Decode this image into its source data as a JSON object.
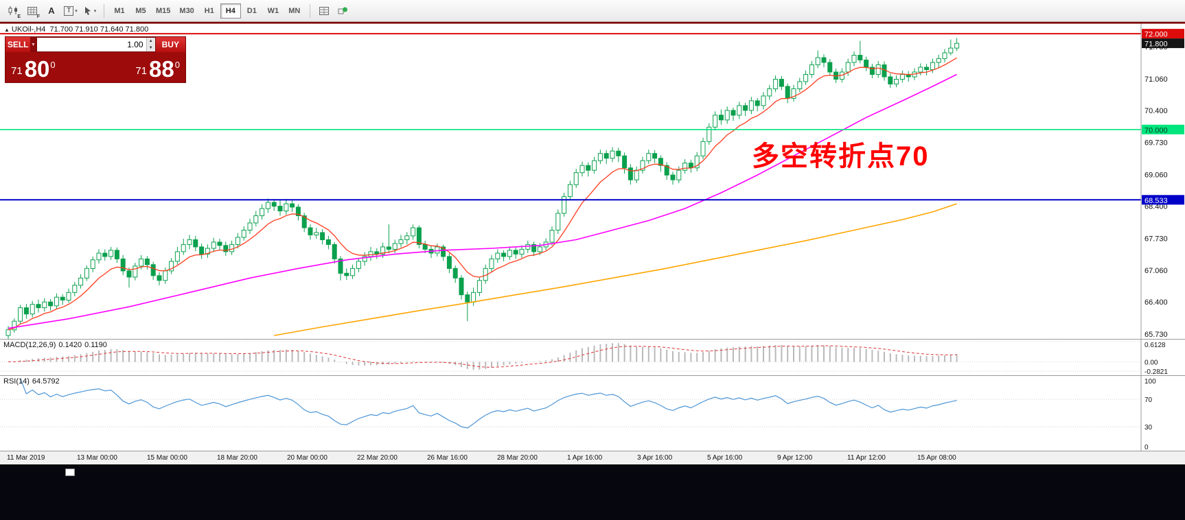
{
  "toolbar": {
    "icons_left": [
      {
        "name": "candle-chart-icon",
        "text": "E"
      },
      {
        "name": "grid-chart-icon",
        "text": "F"
      },
      {
        "name": "text-annotation-icon",
        "text": "A"
      },
      {
        "name": "textbox-tool-icon",
        "text": "T"
      },
      {
        "name": "crosshair-tool-icon",
        "text": ""
      }
    ],
    "timeframes": [
      {
        "label": "M1",
        "active": false
      },
      {
        "label": "M5",
        "active": false
      },
      {
        "label": "M15",
        "active": false
      },
      {
        "label": "M30",
        "active": false
      },
      {
        "label": "H1",
        "active": false
      },
      {
        "label": "H4",
        "active": true
      },
      {
        "label": "D1",
        "active": false
      },
      {
        "label": "W1",
        "active": false
      },
      {
        "label": "MN",
        "active": false
      }
    ],
    "icons_right": [
      {
        "name": "indicators-icon"
      },
      {
        "name": "objects-icon"
      }
    ]
  },
  "chart": {
    "title_symbol": "UKOil-,H4",
    "title_ohlc": "71.700 71.910 71.640 71.800",
    "annotation": "多空转折点70"
  },
  "trade_widget": {
    "sell_label": "SELL",
    "buy_label": "BUY",
    "volume": "1.00",
    "sell_price": {
      "small": "71",
      "big": "80",
      "sup": "0"
    },
    "buy_price": {
      "small": "71",
      "big": "88",
      "sup": "0"
    }
  },
  "macd": {
    "name": "MACD(12,26,9)",
    "value_main": "0.1420",
    "value_signal": "0.1190",
    "scale": {
      "max": 0.6128,
      "min": -0.2821,
      "max_label": "0.6128",
      "zero_label": "0.00",
      "min_label": "-0.2821"
    }
  },
  "rsi": {
    "name": "RSI(14)",
    "value": "64.5792",
    "period": 14,
    "levels": [
      100,
      70,
      30,
      0
    ],
    "dotted_levels": [
      70,
      30
    ]
  },
  "chart_data": {
    "type": "candlestick",
    "symbol": "UKOil-",
    "timeframe": "H4",
    "ohlc_current": {
      "open": 71.7,
      "high": 71.91,
      "low": 71.64,
      "close": 71.8
    },
    "ylim": [
      65.63,
      72.245
    ],
    "scale_labels": [
      71.73,
      71.06,
      70.4,
      69.73,
      69.06,
      68.4,
      67.73,
      67.06,
      66.4,
      65.73
    ],
    "price_lines": [
      {
        "price": 72.0,
        "label": "72.000",
        "color": "#dd0c0c",
        "text": "#ffffff",
        "width": 2
      },
      {
        "price": 70.0,
        "label": "70.000",
        "color": "#00e57d",
        "text": "#07361d",
        "width": 1.6
      },
      {
        "price": 68.533,
        "label": "68.533",
        "color": "#0000c8",
        "text": "#ffffff",
        "width": 2
      }
    ],
    "bid": {
      "price": 71.8,
      "label": "71.800",
      "color": "#151515",
      "text": "#ffffff"
    },
    "colors": {
      "candle": "#0aa04d",
      "up_fill": "#ffffff",
      "ma_fast": "#ff3c1e",
      "ma_medium": "#ff00ff",
      "ma_slow": "#ffa500",
      "macd_bar": "#b9b9b9",
      "macd_signal": "#e03131",
      "rsi_line": "#4b95d6"
    },
    "time_labels": [
      "11 Mar 2019",
      "13 Mar 00:00",
      "15 Mar 00:00",
      "18 Mar 20:00",
      "20 Mar 00:00",
      "22 Mar 20:00",
      "26 Mar 16:00",
      "28 Mar 20:00",
      "1 Apr 16:00",
      "3 Apr 16:00",
      "5 Apr 16:00",
      "9 Apr 12:00",
      "11 Apr 12:00",
      "15 Apr 08:00"
    ],
    "ma_medium_points": [
      [
        0,
        65.85
      ],
      [
        10,
        66.05
      ],
      [
        20,
        66.3
      ],
      [
        30,
        66.6
      ],
      [
        40,
        66.9
      ],
      [
        48,
        67.1
      ],
      [
        56,
        67.28
      ],
      [
        64,
        67.4
      ],
      [
        72,
        67.48
      ],
      [
        80,
        67.52
      ],
      [
        88,
        67.58
      ],
      [
        94,
        67.7
      ],
      [
        100,
        67.9
      ],
      [
        106,
        68.1
      ],
      [
        112,
        68.35
      ],
      [
        118,
        68.68
      ],
      [
        124,
        69.05
      ],
      [
        130,
        69.45
      ],
      [
        136,
        69.85
      ],
      [
        142,
        70.25
      ],
      [
        148,
        70.6
      ],
      [
        153,
        70.9
      ],
      [
        157,
        71.15
      ]
    ],
    "ma_slow_points": [
      [
        44,
        65.7
      ],
      [
        52,
        65.88
      ],
      [
        60,
        66.05
      ],
      [
        68,
        66.22
      ],
      [
        76,
        66.38
      ],
      [
        84,
        66.55
      ],
      [
        92,
        66.72
      ],
      [
        100,
        66.9
      ],
      [
        108,
        67.08
      ],
      [
        116,
        67.28
      ],
      [
        124,
        67.48
      ],
      [
        132,
        67.68
      ],
      [
        140,
        67.9
      ],
      [
        148,
        68.12
      ],
      [
        153,
        68.28
      ],
      [
        157,
        68.45
      ]
    ],
    "candles": [
      [
        65.7,
        65.9,
        65.62,
        65.82
      ],
      [
        65.82,
        66.06,
        65.76,
        66.0
      ],
      [
        66.0,
        66.34,
        65.94,
        66.28
      ],
      [
        66.28,
        66.36,
        66.05,
        66.15
      ],
      [
        66.15,
        66.42,
        66.08,
        66.35
      ],
      [
        66.35,
        66.45,
        66.18,
        66.28
      ],
      [
        66.28,
        66.48,
        66.2,
        66.4
      ],
      [
        66.4,
        66.46,
        66.22,
        66.32
      ],
      [
        66.32,
        66.58,
        66.26,
        66.5
      ],
      [
        66.5,
        66.56,
        66.34,
        66.44
      ],
      [
        66.44,
        66.68,
        66.38,
        66.6
      ],
      [
        66.6,
        66.82,
        66.52,
        66.75
      ],
      [
        66.75,
        66.98,
        66.68,
        66.9
      ],
      [
        66.9,
        67.16,
        66.84,
        67.1
      ],
      [
        67.1,
        67.35,
        67.02,
        67.28
      ],
      [
        67.28,
        67.5,
        67.2,
        67.42
      ],
      [
        67.42,
        67.5,
        67.26,
        67.35
      ],
      [
        67.35,
        67.55,
        67.28,
        67.48
      ],
      [
        67.48,
        67.54,
        67.22,
        67.3
      ],
      [
        67.3,
        67.38,
        66.96,
        67.05
      ],
      [
        67.05,
        67.12,
        66.7,
        66.92
      ],
      [
        66.92,
        67.22,
        66.85,
        67.15
      ],
      [
        67.15,
        67.38,
        67.08,
        67.3
      ],
      [
        67.3,
        67.36,
        67.08,
        67.18
      ],
      [
        67.18,
        67.24,
        66.86,
        66.95
      ],
      [
        66.95,
        67.02,
        66.75,
        66.85
      ],
      [
        66.85,
        67.12,
        66.78,
        67.05
      ],
      [
        67.05,
        67.32,
        66.98,
        67.25
      ],
      [
        67.25,
        67.55,
        67.18,
        67.45
      ],
      [
        67.45,
        67.72,
        67.38,
        67.6
      ],
      [
        67.6,
        67.8,
        67.5,
        67.7
      ],
      [
        67.7,
        67.78,
        67.46,
        67.55
      ],
      [
        67.55,
        67.62,
        67.3,
        67.4
      ],
      [
        67.4,
        67.6,
        67.32,
        67.52
      ],
      [
        67.52,
        67.74,
        67.44,
        67.65
      ],
      [
        67.65,
        67.72,
        67.48,
        67.58
      ],
      [
        67.58,
        67.66,
        67.36,
        67.45
      ],
      [
        67.45,
        67.68,
        67.38,
        67.6
      ],
      [
        67.6,
        67.84,
        67.52,
        67.75
      ],
      [
        67.75,
        67.98,
        67.68,
        67.9
      ],
      [
        67.9,
        68.14,
        67.82,
        68.05
      ],
      [
        68.05,
        68.3,
        67.98,
        68.2
      ],
      [
        68.2,
        68.44,
        68.12,
        68.35
      ],
      [
        68.35,
        68.56,
        68.26,
        68.48
      ],
      [
        68.48,
        68.55,
        68.3,
        68.4
      ],
      [
        68.4,
        68.52,
        68.2,
        68.3
      ],
      [
        68.3,
        68.55,
        68.22,
        68.45
      ],
      [
        68.45,
        68.52,
        68.28,
        68.38
      ],
      [
        68.38,
        68.44,
        68.1,
        68.2
      ],
      [
        68.2,
        68.26,
        67.86,
        67.95
      ],
      [
        67.95,
        68.02,
        67.7,
        67.8
      ],
      [
        67.8,
        67.95,
        67.72,
        67.85
      ],
      [
        67.85,
        67.92,
        67.6,
        67.7
      ],
      [
        67.7,
        67.78,
        67.5,
        67.6
      ],
      [
        67.6,
        67.65,
        67.2,
        67.3
      ],
      [
        67.3,
        67.36,
        66.85,
        67.0
      ],
      [
        67.0,
        67.1,
        66.86,
        66.95
      ],
      [
        66.95,
        67.18,
        66.88,
        67.1
      ],
      [
        67.1,
        67.32,
        67.02,
        67.25
      ],
      [
        67.25,
        67.44,
        67.16,
        67.35
      ],
      [
        67.35,
        67.55,
        67.26,
        67.45
      ],
      [
        67.45,
        67.52,
        67.3,
        67.4
      ],
      [
        67.4,
        67.64,
        67.32,
        67.55
      ],
      [
        67.55,
        68.02,
        67.42,
        67.5
      ],
      [
        67.5,
        67.7,
        67.42,
        67.62
      ],
      [
        67.62,
        67.8,
        67.54,
        67.7
      ],
      [
        67.7,
        67.86,
        67.6,
        67.78
      ],
      [
        67.78,
        68.02,
        67.7,
        67.95
      ],
      [
        67.95,
        68.0,
        67.52,
        67.6
      ],
      [
        67.6,
        67.68,
        67.42,
        67.5
      ],
      [
        67.5,
        67.58,
        67.32,
        67.42
      ],
      [
        67.42,
        67.62,
        67.35,
        67.55
      ],
      [
        67.55,
        67.6,
        67.26,
        67.35
      ],
      [
        67.35,
        67.42,
        67.0,
        67.1
      ],
      [
        67.1,
        67.16,
        66.8,
        66.9
      ],
      [
        66.9,
        66.96,
        66.45,
        66.55
      ],
      [
        66.55,
        66.62,
        66.0,
        66.4
      ],
      [
        66.4,
        66.7,
        66.32,
        66.6
      ],
      [
        66.6,
        66.92,
        66.52,
        66.85
      ],
      [
        66.85,
        67.18,
        66.78,
        67.1
      ],
      [
        67.1,
        67.38,
        67.02,
        67.3
      ],
      [
        67.3,
        67.5,
        67.22,
        67.42
      ],
      [
        67.42,
        67.48,
        67.25,
        67.35
      ],
      [
        67.35,
        67.56,
        67.28,
        67.48
      ],
      [
        67.48,
        67.54,
        67.3,
        67.4
      ],
      [
        67.4,
        67.58,
        67.32,
        67.5
      ],
      [
        67.5,
        67.68,
        67.42,
        67.6
      ],
      [
        67.6,
        67.66,
        67.36,
        67.45
      ],
      [
        67.45,
        67.63,
        67.38,
        67.55
      ],
      [
        67.55,
        67.73,
        67.48,
        67.65
      ],
      [
        67.65,
        67.98,
        67.58,
        67.9
      ],
      [
        67.9,
        68.33,
        67.82,
        68.25
      ],
      [
        68.25,
        68.68,
        68.18,
        68.6
      ],
      [
        68.6,
        68.93,
        68.52,
        68.85
      ],
      [
        68.85,
        69.18,
        68.78,
        69.1
      ],
      [
        69.1,
        69.33,
        69.02,
        69.25
      ],
      [
        69.25,
        69.32,
        69.02,
        69.15
      ],
      [
        69.15,
        69.43,
        69.08,
        69.35
      ],
      [
        69.35,
        69.58,
        69.28,
        69.5
      ],
      [
        69.5,
        69.57,
        69.28,
        69.4
      ],
      [
        69.4,
        69.63,
        69.32,
        69.55
      ],
      [
        69.55,
        69.62,
        69.32,
        69.45
      ],
      [
        69.45,
        69.52,
        69.08,
        69.2
      ],
      [
        69.2,
        69.28,
        68.85,
        68.95
      ],
      [
        68.95,
        69.23,
        68.88,
        69.15
      ],
      [
        69.15,
        69.43,
        69.08,
        69.35
      ],
      [
        69.35,
        69.58,
        69.28,
        69.5
      ],
      [
        69.5,
        69.57,
        69.3,
        69.4
      ],
      [
        69.4,
        69.46,
        69.12,
        69.25
      ],
      [
        69.25,
        69.32,
        68.95,
        69.05
      ],
      [
        69.05,
        69.12,
        68.85,
        68.95
      ],
      [
        68.95,
        69.23,
        68.88,
        69.15
      ],
      [
        69.15,
        69.38,
        69.08,
        69.3
      ],
      [
        69.3,
        69.37,
        69.1,
        69.2
      ],
      [
        69.2,
        69.53,
        69.13,
        69.45
      ],
      [
        69.45,
        69.83,
        69.38,
        69.75
      ],
      [
        69.75,
        70.13,
        69.68,
        70.05
      ],
      [
        70.05,
        70.38,
        69.98,
        70.3
      ],
      [
        70.3,
        70.42,
        70.1,
        70.2
      ],
      [
        70.2,
        70.48,
        70.12,
        70.4
      ],
      [
        70.4,
        70.46,
        70.18,
        70.3
      ],
      [
        70.3,
        70.58,
        70.22,
        70.5
      ],
      [
        70.5,
        70.56,
        70.28,
        70.4
      ],
      [
        70.4,
        70.68,
        70.32,
        70.6
      ],
      [
        70.6,
        70.66,
        70.38,
        70.5
      ],
      [
        70.5,
        70.78,
        70.42,
        70.7
      ],
      [
        70.7,
        70.93,
        70.62,
        70.85
      ],
      [
        70.85,
        71.13,
        70.78,
        71.05
      ],
      [
        71.05,
        71.12,
        70.82,
        70.9
      ],
      [
        70.9,
        70.96,
        70.55,
        70.65
      ],
      [
        70.65,
        70.93,
        70.58,
        70.85
      ],
      [
        70.85,
        71.08,
        70.78,
        71.0
      ],
      [
        71.0,
        71.23,
        70.93,
        71.15
      ],
      [
        71.15,
        71.43,
        71.08,
        71.35
      ],
      [
        71.35,
        71.65,
        71.28,
        71.5
      ],
      [
        71.5,
        71.57,
        71.3,
        71.4
      ],
      [
        71.4,
        71.47,
        71.12,
        71.2
      ],
      [
        71.2,
        71.27,
        70.97,
        71.05
      ],
      [
        71.05,
        71.28,
        70.98,
        71.2
      ],
      [
        71.2,
        71.48,
        71.12,
        71.4
      ],
      [
        71.4,
        71.63,
        71.32,
        71.55
      ],
      [
        71.55,
        71.85,
        71.38,
        71.45
      ],
      [
        71.45,
        71.52,
        71.22,
        71.3
      ],
      [
        71.3,
        71.37,
        71.07,
        71.15
      ],
      [
        71.15,
        71.43,
        71.08,
        71.35
      ],
      [
        71.35,
        71.42,
        71.02,
        71.1
      ],
      [
        71.1,
        71.17,
        70.87,
        70.95
      ],
      [
        70.95,
        71.13,
        70.88,
        71.05
      ],
      [
        71.05,
        71.23,
        70.98,
        71.15
      ],
      [
        71.15,
        71.22,
        71.0,
        71.1
      ],
      [
        71.1,
        71.28,
        71.03,
        71.2
      ],
      [
        71.2,
        71.38,
        71.13,
        71.3
      ],
      [
        71.3,
        71.37,
        71.13,
        71.25
      ],
      [
        71.25,
        71.48,
        71.18,
        71.4
      ],
      [
        71.4,
        71.56,
        71.28,
        71.48
      ],
      [
        71.48,
        71.68,
        71.4,
        71.6
      ],
      [
        71.6,
        71.88,
        71.55,
        71.7
      ],
      [
        71.7,
        71.91,
        71.64,
        71.8
      ]
    ]
  }
}
